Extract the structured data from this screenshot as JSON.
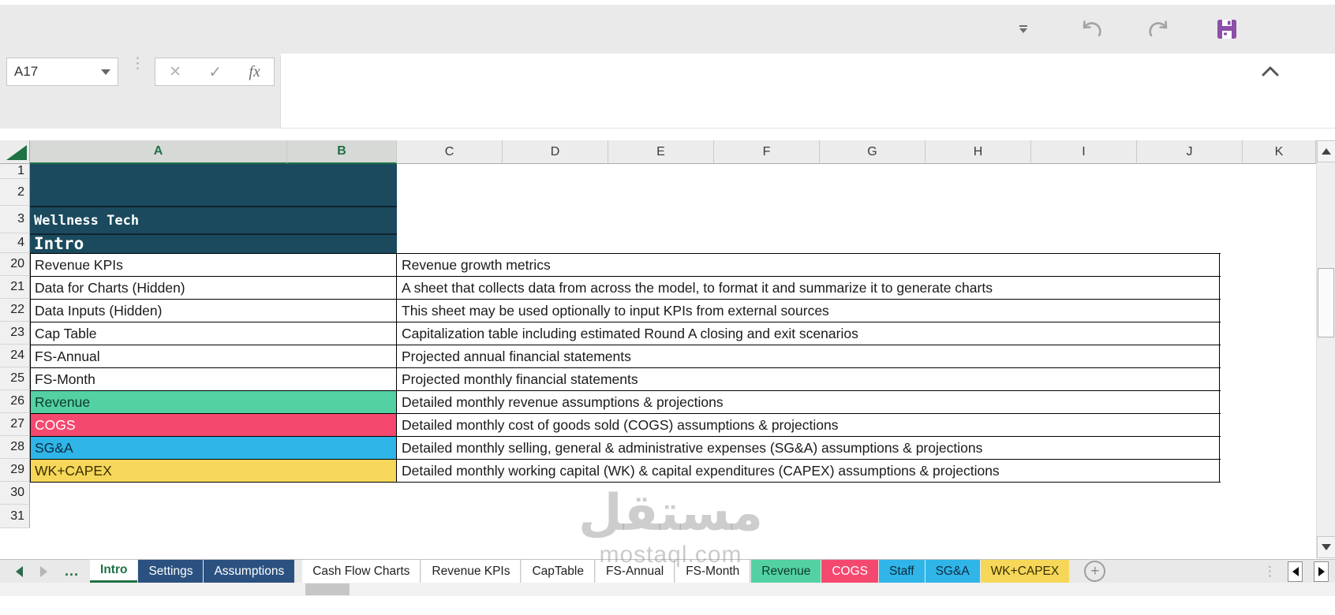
{
  "app": {
    "name_box_value": "A17",
    "fx_label": "fx",
    "cancel_glyph": "✕",
    "accept_glyph": "✓",
    "vdots_glyph": "⋮"
  },
  "colors": {
    "navy_cell": "#1b4a5e",
    "tab_navy": "#2b5180",
    "excel_green": "#1e7245",
    "teal": "#53d1a3",
    "pink": "#f5486f",
    "blue": "#30b5e8",
    "yellow": "#f6d75a",
    "save_purple": "#8d4fa8"
  },
  "grid": {
    "column_headers": [
      "A",
      "B",
      "C",
      "D",
      "E",
      "F",
      "G",
      "H",
      "I",
      "J",
      "K"
    ],
    "selected_columns": [
      "A",
      "B"
    ],
    "visible_rows": [
      "1",
      "2",
      "3",
      "4",
      "20",
      "21",
      "22",
      "23",
      "24",
      "25",
      "26",
      "27",
      "28",
      "29",
      "30",
      "31"
    ],
    "title_block": {
      "company": "Wellness Tech",
      "sheet": "Intro"
    },
    "rows": [
      {
        "row": "20",
        "label": "Revenue KPIs",
        "desc": "Revenue growth metrics",
        "variant": "plain"
      },
      {
        "row": "21",
        "label": "Data for Charts (Hidden)",
        "desc": "A sheet that collects data from across the model, to format it and summarize it to generate charts",
        "variant": "plain"
      },
      {
        "row": "22",
        "label": "Data Inputs (Hidden)",
        "desc": "This sheet may be used optionally to input KPIs from external sources",
        "variant": "plain"
      },
      {
        "row": "23",
        "label": "Cap Table",
        "desc": "Capitalization table including estimated Round A closing and exit scenarios",
        "variant": "plain"
      },
      {
        "row": "24",
        "label": "FS-Annual",
        "desc": "Projected annual financial statements",
        "variant": "plain"
      },
      {
        "row": "25",
        "label": "FS-Month",
        "desc": "Projected monthly financial statements",
        "variant": "plain"
      },
      {
        "row": "26",
        "label": "Revenue",
        "desc": "Detailed monthly revenue assumptions & projections",
        "variant": "teal"
      },
      {
        "row": "27",
        "label": "COGS",
        "desc": "Detailed monthly cost of goods sold (COGS) assumptions & projections",
        "variant": "pink"
      },
      {
        "row": "28",
        "label": "SG&A",
        "desc": "Detailed monthly selling, general & administrative expenses (SG&A) assumptions & projections",
        "variant": "blue"
      },
      {
        "row": "29",
        "label": "WK+CAPEX",
        "desc": "Detailed monthly working capital (WK) & capital expenditures (CAPEX) assumptions & projections",
        "variant": "yellow"
      }
    ]
  },
  "sheet_tabs": [
    {
      "label": "Intro",
      "variant": "active"
    },
    {
      "label": "Settings",
      "variant": "navy"
    },
    {
      "label": "Assumptions",
      "variant": "navy"
    },
    {
      "label": "Cash Flow Charts",
      "variant": "plain",
      "gap_before": true
    },
    {
      "label": "Revenue KPIs",
      "variant": "plain"
    },
    {
      "label": "CapTable",
      "variant": "plain"
    },
    {
      "label": "FS-Annual",
      "variant": "plain"
    },
    {
      "label": "FS-Month",
      "variant": "plain"
    },
    {
      "label": "Revenue",
      "variant": "teal"
    },
    {
      "label": "COGS",
      "variant": "pink"
    },
    {
      "label": "Staff",
      "variant": "blue"
    },
    {
      "label": "SG&A",
      "variant": "blue"
    },
    {
      "label": "WK+CAPEX",
      "variant": "yellow"
    }
  ],
  "tab_nav": {
    "more_label": "...",
    "add_label": "+",
    "dots_glyph": "⋮"
  },
  "watermark": {
    "logo": "مستقل",
    "domain": "mostaql.com"
  }
}
